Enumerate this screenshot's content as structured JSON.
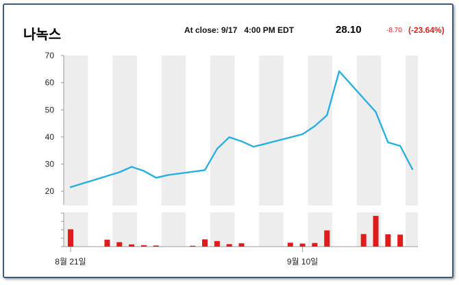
{
  "header": {
    "title": "나녹스",
    "close_label": "At close: 9/17   4:00 PM EDT",
    "price": "28.10",
    "change": "-8.70",
    "change_pct": "(-23.64%)"
  },
  "colors": {
    "line": "#29aee0",
    "volume": "#e01b1b",
    "band": "#ededed",
    "change": "#e02020"
  },
  "chart_data": {
    "type": "line",
    "title": "",
    "xlabel": "",
    "ylabel": "",
    "ylim": [
      15,
      70
    ],
    "y_ticks": [
      20,
      30,
      40,
      50,
      60,
      70
    ],
    "x_tick_labels": [
      "8월 21일",
      "9월 10일"
    ],
    "x_tick_days": [
      0,
      19
    ],
    "grid": "alternating vertical bands",
    "series": [
      {
        "days": [
          0,
          4,
          5,
          6,
          7,
          8,
          11,
          12,
          13,
          14,
          15,
          19,
          20,
          21,
          22,
          25,
          26,
          27,
          28
        ],
        "values": [
          21.5,
          27,
          29,
          27.5,
          25,
          26,
          27.8,
          35.6,
          39.9,
          38.4,
          36.4,
          41,
          44,
          48,
          64.2,
          49.2,
          38,
          36.7,
          28.1
        ]
      }
    ],
    "volume": {
      "days": [
        0,
        3,
        4,
        5,
        6,
        7,
        10,
        11,
        12,
        13,
        14,
        18,
        19,
        20,
        21,
        24,
        25,
        26,
        27
      ],
      "values": [
        6.2,
        2.5,
        1.6,
        0.8,
        0.5,
        0.4,
        0.3,
        2.6,
        2.0,
        0.9,
        1.2,
        1.4,
        1.1,
        1.3,
        5.8,
        4.5,
        11.0,
        4.4,
        4.3
      ]
    }
  }
}
